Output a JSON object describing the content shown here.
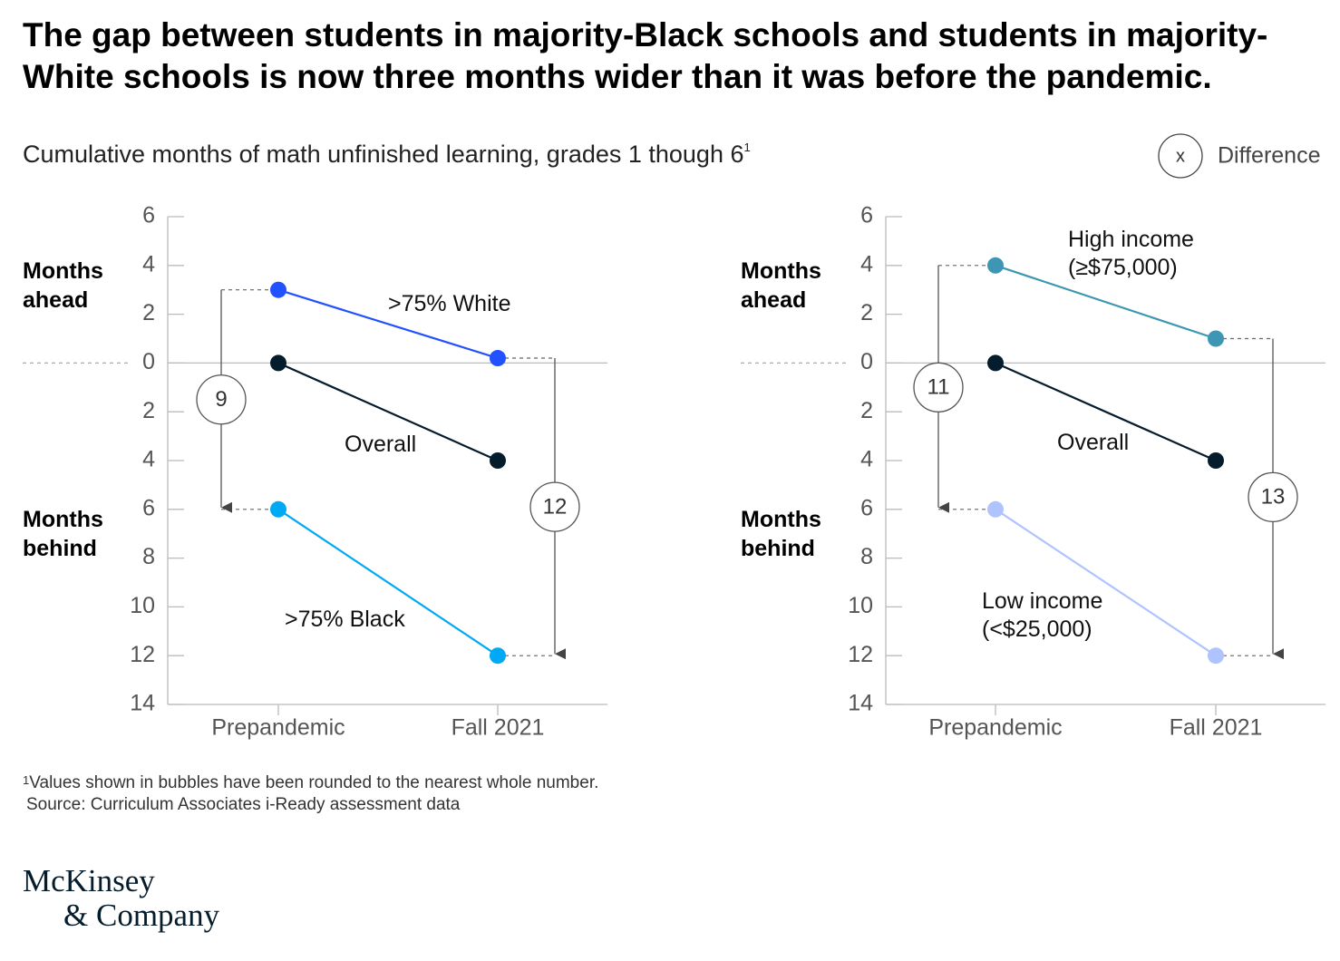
{
  "title": "The gap between students in majority-Black schools and students in majority-White schools is now three months wider than it was before the pandemic.",
  "subtitle": "Cumulative months of math unfinished learning, grades 1 though 6",
  "subtitle_marker": "1",
  "legend_symbol": "x",
  "legend_label": "Difference",
  "footnote_marker": "1",
  "footnote": "Values shown in bubbles have been rounded to the nearest whole number.",
  "source": "Source: Curriculum Associates i-Ready assessment data",
  "brand": [
    "McKinsey",
    "& Company"
  ],
  "chart_data": [
    {
      "type": "line",
      "categories": [
        "Prepandemic",
        "Fall 2021"
      ],
      "ylabel_top": "Months ahead",
      "ylabel_bottom": "Months behind",
      "series": [
        {
          "name": ">75% White",
          "color": "#2251ff",
          "values": [
            3,
            0.2
          ]
        },
        {
          "name": "Overall",
          "color": "#051c2c",
          "values": [
            0,
            -4
          ]
        },
        {
          "name": ">75% Black",
          "color": "#00a9f4",
          "values": [
            -6,
            -12
          ]
        }
      ],
      "differences": [
        9,
        12
      ],
      "ylim": [
        -14,
        6
      ],
      "yticks": [
        6,
        4,
        2,
        0,
        {
          "value": -2,
          "label": "2"
        },
        {
          "value": -4,
          "label": "4"
        },
        {
          "value": -6,
          "label": "6"
        },
        {
          "value": -8,
          "label": "8"
        },
        {
          "value": -10,
          "label": "10"
        },
        {
          "value": -12,
          "label": "12"
        },
        {
          "value": -14,
          "label": "14"
        }
      ]
    },
    {
      "type": "line",
      "categories": [
        "Prepandemic",
        "Fall 2021"
      ],
      "ylabel_top": "Months ahead",
      "ylabel_bottom": "Months behind",
      "series": [
        {
          "name": "High income (≥$75,000)",
          "color": "#3c96b4",
          "values": [
            4,
            1
          ]
        },
        {
          "name": "Overall",
          "color": "#051c2c",
          "values": [
            0,
            -4
          ]
        },
        {
          "name": "Low income (<$25,000)",
          "color": "#afc3ff",
          "values": [
            -6,
            -12
          ]
        }
      ],
      "differences": [
        11,
        13
      ],
      "ylim": [
        -14,
        6
      ],
      "yticks": [
        6,
        4,
        2,
        0,
        {
          "value": -2,
          "label": "2"
        },
        {
          "value": -4,
          "label": "4"
        },
        {
          "value": -6,
          "label": "6"
        },
        {
          "value": -8,
          "label": "8"
        },
        {
          "value": -10,
          "label": "10"
        },
        {
          "value": -12,
          "label": "12"
        },
        {
          "value": -14,
          "label": "14"
        }
      ]
    }
  ]
}
